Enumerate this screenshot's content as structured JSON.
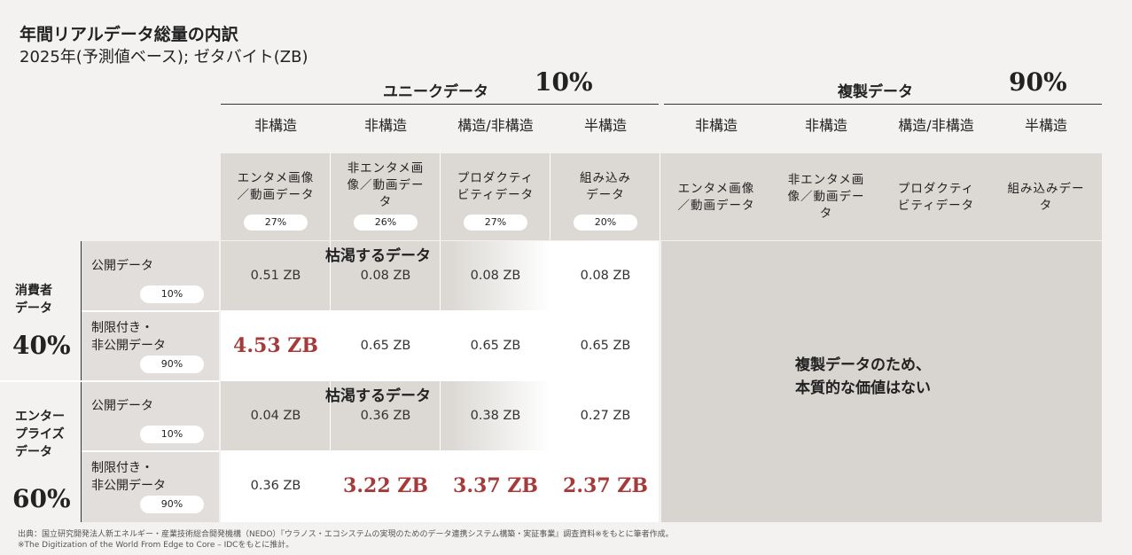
{
  "title": "年間リアルデータ総量の内訳",
  "subtitle": "2025年(予測値ベース); ゼタバイト(ZB)",
  "groups": {
    "unique": {
      "label": "ユニークデータ",
      "pct": "10%"
    },
    "duplicate": {
      "label": "複製データ",
      "pct": "90%"
    }
  },
  "colors": {
    "highlight": "#a63a3a",
    "band": "#dcd9d5",
    "duplicate_area": "#d8d4d0",
    "exhausted": "#dcd9d5"
  },
  "unique_columns": [
    {
      "type": "非構造",
      "category": [
        "エンタメ画像",
        "／動画データ"
      ],
      "share": "27%"
    },
    {
      "type": "非構造",
      "category": [
        "非エンタメ画",
        "像／動画デー",
        "タ"
      ],
      "share": "26%"
    },
    {
      "type": "構造/非構造",
      "category": [
        "プロダクティ",
        "ビティデータ"
      ],
      "share": "27%"
    },
    {
      "type": "半構造",
      "category": [
        "組み込み",
        "データ"
      ],
      "share": "20%"
    }
  ],
  "duplicate_columns": [
    {
      "type": "非構造",
      "category": [
        "エンタメ画像",
        "／動画データ"
      ]
    },
    {
      "type": "非構造",
      "category": [
        "非エンタメ画",
        "像／動画デー",
        "タ"
      ]
    },
    {
      "type": "構造/非構造",
      "category": [
        "プロダクティ",
        "ビティデータ"
      ]
    },
    {
      "type": "半構造",
      "category": [
        "組み込みデー",
        "タ"
      ]
    }
  ],
  "segments": [
    {
      "label": [
        "消費者",
        "データ"
      ],
      "pct": "40%"
    },
    {
      "label": [
        "エンター",
        "プライズ",
        "データ"
      ],
      "pct": "60%"
    }
  ],
  "rows": [
    {
      "label": [
        "公開データ"
      ],
      "share": "10%"
    },
    {
      "label": [
        "制限付き・",
        "非公開データ"
      ],
      "share": "90%"
    },
    {
      "label": [
        "公開データ"
      ],
      "share": "10%"
    },
    {
      "label": [
        "制限付き・",
        "非公開データ"
      ],
      "share": "90%"
    }
  ],
  "exhausted_label": "枯渇するデータ",
  "duplicate_note": [
    "複製データのため、",
    "本質的な価値はない"
  ],
  "chart_data": {
    "type": "table",
    "title": "年間リアルデータ総量の内訳",
    "unit": "ZB",
    "columns": [
      "エンタメ画像／動画データ",
      "非エンタメ画像／動画データ",
      "プロダクティビティデータ",
      "組み込みデータ"
    ],
    "row_labels": [
      "消費者・公開データ",
      "消費者・制限付き・非公開データ",
      "エンタープライズ・公開データ",
      "エンタープライズ・制限付き・非公開データ"
    ],
    "values": [
      [
        0.51,
        0.08,
        0.08,
        0.08
      ],
      [
        4.53,
        0.65,
        0.65,
        0.65
      ],
      [
        0.04,
        0.36,
        0.38,
        0.27
      ],
      [
        0.36,
        3.22,
        3.37,
        2.37
      ]
    ],
    "display": [
      [
        "0.51 ZB",
        "0.08 ZB",
        "0.08 ZB",
        "0.08 ZB"
      ],
      [
        "4.53 ZB",
        "0.65 ZB",
        "0.65 ZB",
        "0.65 ZB"
      ],
      [
        "0.04 ZB",
        "0.36 ZB",
        "0.38 ZB",
        "0.27 ZB"
      ],
      [
        "0.36 ZB",
        "3.22 ZB",
        "3.37 ZB",
        "2.37 ZB"
      ]
    ],
    "highlighted": [
      [
        1,
        0
      ],
      [
        3,
        1
      ],
      [
        3,
        2
      ],
      [
        3,
        3
      ]
    ]
  },
  "footnotes": [
    "出典：国立研究開発法人新エネルギー・産業技術総合開発機構（NEDO）『ウラノス・エコシステムの実現のためのデータ連携システム構築・実証事業』調査資料※をもとに筆者作成。",
    "※The Digitization of the World From Edge to Core – IDCをもとに推計。"
  ]
}
